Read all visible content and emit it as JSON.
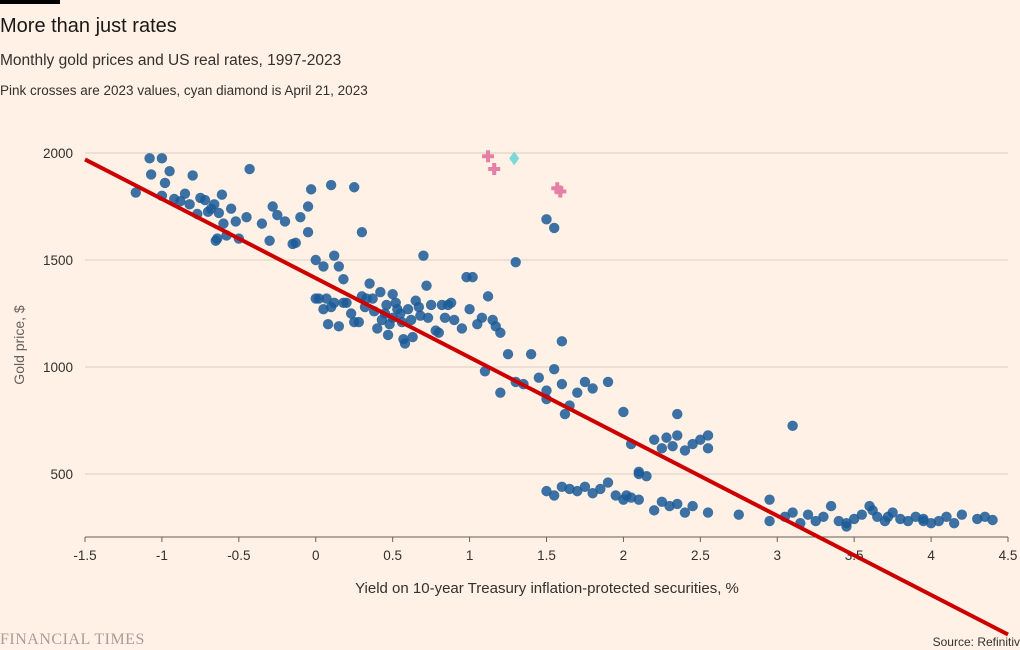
{
  "header": {
    "title": "More than just rates",
    "subtitle": "Monthly gold prices and US real rates, 1997-2023",
    "note": "Pink crosses are 2023 values, cyan diamond is April 21, 2023"
  },
  "footer": {
    "brand": "FINANCIAL TIMES",
    "source": "Source: Refinitiv"
  },
  "colors": {
    "background": "#fff1e5",
    "points": "#1b5a98",
    "crosses": "#e47fa6",
    "diamond": "#7fd8d8",
    "trend": "#cc0000",
    "grid": "#d9cfc4"
  },
  "chart_data": {
    "type": "scatter",
    "xlabel": "Yield on 10-year Treasury inflation-protected securities, %",
    "ylabel": "Gold price, $",
    "xlim": [
      -1.5,
      4.5
    ],
    "ylim": [
      200,
      2050
    ],
    "xticks": [
      "-1.5",
      "-1",
      "-0.5",
      "0",
      "0.5",
      "1",
      "1.5",
      "2",
      "2.5",
      "3",
      "3.5",
      "4",
      "4.5"
    ],
    "yticks": [
      "500",
      "1000",
      "1500",
      "2000"
    ],
    "trendline": [
      [
        -1.5,
        1970
      ],
      [
        4.5,
        -250
      ]
    ],
    "series": [
      {
        "marker": "circle",
        "points": [
          [
            -1.17,
            1815
          ],
          [
            -1.08,
            1975
          ],
          [
            -1.07,
            1900
          ],
          [
            -1.0,
            1975
          ],
          [
            -1.0,
            1800
          ],
          [
            -0.98,
            1860
          ],
          [
            -0.95,
            1915
          ],
          [
            -0.92,
            1785
          ],
          [
            -0.88,
            1775
          ],
          [
            -0.85,
            1810
          ],
          [
            -0.82,
            1760
          ],
          [
            -0.8,
            1895
          ],
          [
            -0.77,
            1715
          ],
          [
            -0.75,
            1790
          ],
          [
            -0.72,
            1780
          ],
          [
            -0.7,
            1725
          ],
          [
            -0.68,
            1740
          ],
          [
            -0.66,
            1760
          ],
          [
            -0.65,
            1590
          ],
          [
            -0.64,
            1600
          ],
          [
            -0.63,
            1720
          ],
          [
            -0.61,
            1805
          ],
          [
            -0.6,
            1670
          ],
          [
            -0.58,
            1615
          ],
          [
            -0.55,
            1740
          ],
          [
            -0.52,
            1680
          ],
          [
            -0.5,
            1600
          ],
          [
            -0.45,
            1700
          ],
          [
            -0.43,
            1925
          ],
          [
            -0.35,
            1670
          ],
          [
            -0.3,
            1590
          ],
          [
            -0.28,
            1750
          ],
          [
            -0.25,
            1710
          ],
          [
            -0.2,
            1680
          ],
          [
            -0.15,
            1575
          ],
          [
            -0.13,
            1580
          ],
          [
            -0.1,
            1700
          ],
          [
            -0.05,
            1750
          ],
          [
            -0.05,
            1630
          ],
          [
            -0.03,
            1830
          ],
          [
            0.0,
            1500
          ],
          [
            0.05,
            1470
          ],
          [
            0.1,
            1850
          ],
          [
            0.12,
            1520
          ],
          [
            0.15,
            1470
          ],
          [
            0.18,
            1410
          ],
          [
            0.25,
            1840
          ],
          [
            0.3,
            1630
          ],
          [
            0.0,
            1320
          ],
          [
            0.02,
            1320
          ],
          [
            0.05,
            1270
          ],
          [
            0.07,
            1320
          ],
          [
            0.08,
            1200
          ],
          [
            0.1,
            1280
          ],
          [
            0.12,
            1300
          ],
          [
            0.15,
            1190
          ],
          [
            0.18,
            1300
          ],
          [
            0.2,
            1300
          ],
          [
            0.23,
            1250
          ],
          [
            0.25,
            1210
          ],
          [
            0.28,
            1210
          ],
          [
            0.3,
            1330
          ],
          [
            0.32,
            1280
          ],
          [
            0.33,
            1320
          ],
          [
            0.35,
            1390
          ],
          [
            0.37,
            1320
          ],
          [
            0.38,
            1260
          ],
          [
            0.4,
            1180
          ],
          [
            0.42,
            1350
          ],
          [
            0.43,
            1220
          ],
          [
            0.45,
            1250
          ],
          [
            0.46,
            1290
          ],
          [
            0.47,
            1150
          ],
          [
            0.48,
            1200
          ],
          [
            0.5,
            1340
          ],
          [
            0.5,
            1230
          ],
          [
            0.52,
            1300
          ],
          [
            0.53,
            1270
          ],
          [
            0.55,
            1250
          ],
          [
            0.56,
            1210
          ],
          [
            0.57,
            1130
          ],
          [
            0.58,
            1110
          ],
          [
            0.6,
            1270
          ],
          [
            0.62,
            1220
          ],
          [
            0.63,
            1140
          ],
          [
            0.65,
            1310
          ],
          [
            0.67,
            1280
          ],
          [
            0.68,
            1240
          ],
          [
            0.7,
            1520
          ],
          [
            0.72,
            1380
          ],
          [
            0.73,
            1230
          ],
          [
            0.75,
            1290
          ],
          [
            0.78,
            1170
          ],
          [
            0.8,
            1160
          ],
          [
            0.82,
            1290
          ],
          [
            0.84,
            1230
          ],
          [
            0.86,
            1290
          ],
          [
            0.88,
            1300
          ],
          [
            0.9,
            1220
          ],
          [
            0.95,
            1180
          ],
          [
            0.98,
            1420
          ],
          [
            1.0,
            1270
          ],
          [
            1.02,
            1420
          ],
          [
            1.05,
            1200
          ],
          [
            1.08,
            1230
          ],
          [
            1.12,
            1330
          ],
          [
            1.15,
            1220
          ],
          [
            1.17,
            1190
          ],
          [
            1.2,
            1160
          ],
          [
            1.25,
            1060
          ],
          [
            1.1,
            980
          ],
          [
            1.3,
            930
          ],
          [
            1.35,
            920
          ],
          [
            1.4,
            1060
          ],
          [
            1.45,
            950
          ],
          [
            1.5,
            890
          ],
          [
            1.55,
            990
          ],
          [
            1.6,
            920
          ],
          [
            1.65,
            820
          ],
          [
            1.7,
            880
          ],
          [
            1.75,
            930
          ],
          [
            1.8,
            900
          ],
          [
            1.9,
            930
          ],
          [
            2.0,
            790
          ],
          [
            2.05,
            640
          ],
          [
            2.1,
            510
          ],
          [
            2.15,
            490
          ],
          [
            2.2,
            660
          ],
          [
            2.25,
            620
          ],
          [
            2.28,
            670
          ],
          [
            2.32,
            630
          ],
          [
            2.35,
            680
          ],
          [
            2.4,
            610
          ],
          [
            2.45,
            640
          ],
          [
            2.5,
            660
          ],
          [
            2.55,
            620
          ],
          [
            1.5,
            420
          ],
          [
            1.55,
            400
          ],
          [
            1.6,
            440
          ],
          [
            1.65,
            430
          ],
          [
            1.7,
            420
          ],
          [
            1.75,
            440
          ],
          [
            1.8,
            410
          ],
          [
            1.85,
            430
          ],
          [
            1.9,
            460
          ],
          [
            1.95,
            400
          ],
          [
            2.0,
            380
          ],
          [
            2.02,
            400
          ],
          [
            2.05,
            390
          ],
          [
            2.1,
            380
          ],
          [
            2.2,
            330
          ],
          [
            2.25,
            370
          ],
          [
            2.3,
            350
          ],
          [
            2.35,
            360
          ],
          [
            2.4,
            320
          ],
          [
            2.45,
            350
          ],
          [
            2.55,
            320
          ],
          [
            2.75,
            310
          ],
          [
            2.95,
            280
          ],
          [
            3.05,
            300
          ],
          [
            3.1,
            320
          ],
          [
            3.15,
            270
          ],
          [
            3.2,
            310
          ],
          [
            3.25,
            280
          ],
          [
            3.3,
            300
          ],
          [
            3.35,
            350
          ],
          [
            3.4,
            280
          ],
          [
            3.45,
            270
          ],
          [
            3.5,
            290
          ],
          [
            3.55,
            310
          ],
          [
            3.6,
            350
          ],
          [
            3.62,
            330
          ],
          [
            3.65,
            300
          ],
          [
            3.7,
            280
          ],
          [
            3.72,
            300
          ],
          [
            3.75,
            320
          ],
          [
            3.8,
            290
          ],
          [
            3.85,
            280
          ],
          [
            3.9,
            300
          ],
          [
            3.95,
            290
          ],
          [
            4.0,
            270
          ],
          [
            4.05,
            280
          ],
          [
            4.1,
            300
          ],
          [
            4.15,
            270
          ],
          [
            4.2,
            310
          ],
          [
            4.3,
            290
          ],
          [
            4.35,
            300
          ],
          [
            4.4,
            285
          ],
          [
            1.5,
            1690
          ],
          [
            1.55,
            1650
          ],
          [
            1.3,
            1490
          ],
          [
            1.6,
            1120
          ],
          [
            1.2,
            880
          ],
          [
            1.5,
            850
          ],
          [
            1.62,
            780
          ],
          [
            2.1,
            500
          ],
          [
            2.35,
            780
          ],
          [
            2.55,
            680
          ],
          [
            3.1,
            725
          ],
          [
            3.95,
            280
          ],
          [
            2.95,
            380
          ],
          [
            3.45,
            255
          ]
        ]
      },
      {
        "marker": "cross",
        "points": [
          [
            1.12,
            1985
          ],
          [
            1.16,
            1925
          ],
          [
            1.57,
            1835
          ],
          [
            1.59,
            1820
          ]
        ]
      },
      {
        "marker": "diamond",
        "points": [
          [
            1.29,
            1975
          ]
        ]
      }
    ]
  }
}
